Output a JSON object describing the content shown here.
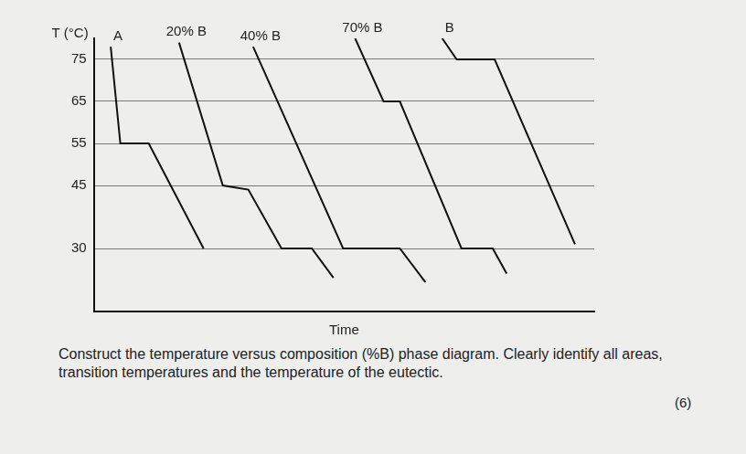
{
  "chart_data": {
    "type": "line",
    "y_label": "T (°C)",
    "x_label": "Time",
    "xlim": [
      0,
      104
    ],
    "ylim": [
      15,
      80
    ],
    "yticks": [
      30,
      45,
      55,
      65,
      75
    ],
    "grid": true,
    "tick_labels": "y",
    "color": "#111111",
    "series": [
      {
        "name": "A",
        "x": [
          3.5,
          5.5,
          11.4,
          22.8
        ],
        "values": [
          78,
          55,
          55,
          30
        ]
      },
      {
        "name": "20% B",
        "x": [
          17.7,
          26.8,
          32.1,
          39.0,
          45.3,
          49.8
        ],
        "values": [
          79,
          45,
          44,
          30,
          30,
          23
        ]
      },
      {
        "name": "40% B",
        "x": [
          33.1,
          51.8,
          63.6,
          68.9
        ],
        "values": [
          78,
          30,
          30,
          22
        ]
      },
      {
        "name": "70% B",
        "x": [
          54.3,
          60.2,
          63.6,
          76.4,
          82.9,
          85.8
        ],
        "values": [
          80,
          65,
          65,
          30,
          30,
          24
        ]
      },
      {
        "name": "B",
        "x": [
          72.4,
          75.4,
          83.3,
          100
        ],
        "values": [
          80,
          75,
          75,
          31
        ]
      }
    ]
  },
  "question": {
    "text": "Construct the temperature versus composition (%B) phase diagram. Clearly identify all areas, transition temperatures and the temperature of the eutectic.",
    "marks": "(6)"
  }
}
